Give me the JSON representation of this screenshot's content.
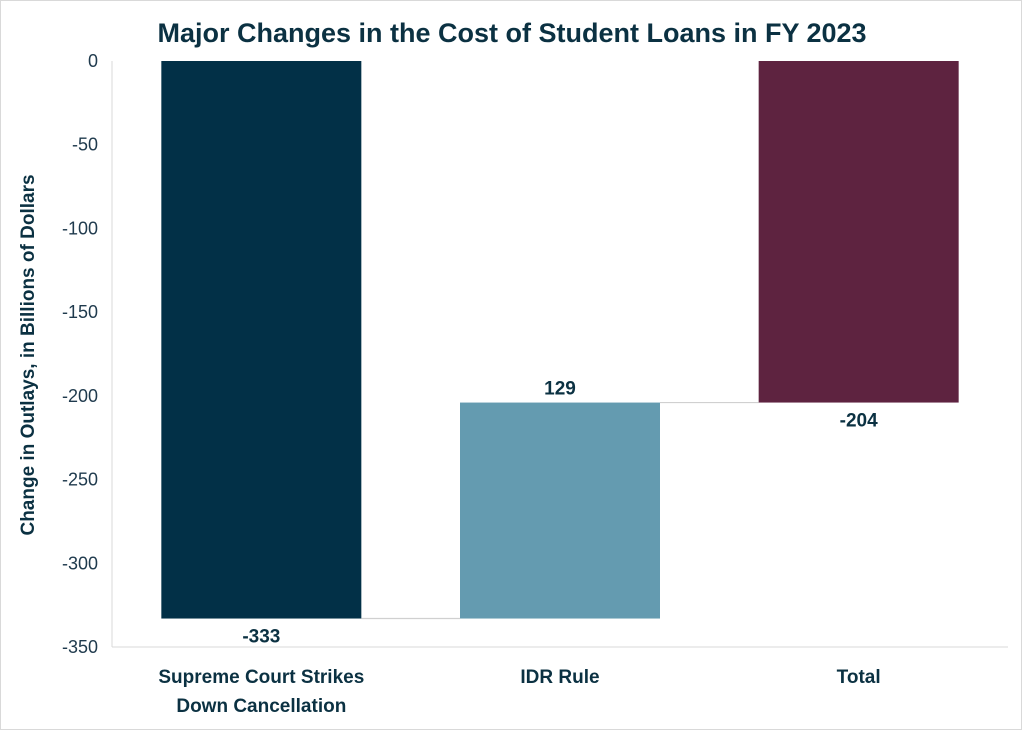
{
  "chart_data": {
    "type": "bar",
    "subtype": "waterfall",
    "title": "Major Changes in the Cost of Student Loans in FY 2023",
    "ylabel": "Change in Outlays,  in Billions of Dollars",
    "xlabel": "",
    "ylim": [
      -350,
      0
    ],
    "yticks": [
      0,
      -50,
      -100,
      -150,
      -200,
      -250,
      -300,
      -350
    ],
    "categories": [
      [
        "Supreme Court Strikes",
        "Down Cancellation"
      ],
      [
        "IDR Rule"
      ],
      [
        "Total"
      ]
    ],
    "bars": [
      {
        "start": 0,
        "end": -333,
        "label": "-333",
        "color": "#023047"
      },
      {
        "start": -333,
        "end": -204,
        "label": "129",
        "color": "#649bb0"
      },
      {
        "start": 0,
        "end": -204,
        "label": "-204",
        "color": "#5e2340"
      }
    ],
    "connectors": true,
    "grid": false,
    "legend": "none"
  },
  "colors": {
    "text": "#0b3142",
    "tick": "#1f3a4d",
    "axis": "#d9d9d9",
    "connector": "#d0d0d0"
  }
}
